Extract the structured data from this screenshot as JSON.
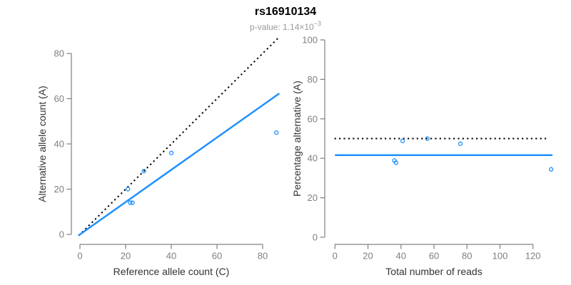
{
  "header": {
    "title": "rs16910134",
    "subtitle_prefix": "p-value: 1.14×10",
    "subtitle_exponent": "−3"
  },
  "colors": {
    "accent_blue": "#1E90FF",
    "line_black": "#000000",
    "axis_gray": "#808080",
    "tick_label_gray": "#7F7F7F",
    "axis_title_dark": "#333333",
    "subtitle_gray": "#999999"
  },
  "chart_data": [
    {
      "type": "scatter",
      "panel": "left",
      "xlabel": "Reference allele count (C)",
      "ylabel": "Alternative allele count (A)",
      "xticks": [
        0,
        20,
        40,
        60,
        80
      ],
      "yticks": [
        0,
        20,
        40,
        60,
        80
      ],
      "xlim": [
        0,
        87
      ],
      "ylim": [
        0,
        87
      ],
      "grid": false,
      "points": [
        [
          21,
          20
        ],
        [
          22,
          14
        ],
        [
          23,
          14
        ],
        [
          28,
          28
        ],
        [
          40,
          36
        ],
        [
          86,
          45
        ]
      ],
      "lines": [
        {
          "id": "identity",
          "type": "abline",
          "slope": 1,
          "intercept": 0,
          "style": "dotted",
          "color": "#000000"
        },
        {
          "id": "fit",
          "type": "abline",
          "slope": 0.714,
          "intercept": 0,
          "style": "solid",
          "color": "#1E90FF"
        }
      ]
    },
    {
      "type": "scatter",
      "panel": "right",
      "xlabel": "Total number of reads",
      "ylabel": "Percentage alternative (A)",
      "xticks": [
        0,
        20,
        40,
        60,
        80,
        100,
        120
      ],
      "yticks": [
        0,
        20,
        40,
        60,
        80,
        100
      ],
      "xlim": [
        0,
        131
      ],
      "ylim": [
        0,
        100
      ],
      "grid": false,
      "points": [
        [
          41,
          48.8
        ],
        [
          36,
          38.9
        ],
        [
          37,
          37.8
        ],
        [
          56,
          50
        ],
        [
          76,
          47.4
        ],
        [
          131,
          34.4
        ]
      ],
      "lines": [
        {
          "id": "expected",
          "type": "hline",
          "y": 50,
          "style": "dotted",
          "color": "#000000"
        },
        {
          "id": "fit",
          "type": "hline",
          "y": 41.6,
          "style": "solid",
          "color": "#1E90FF"
        }
      ]
    }
  ]
}
